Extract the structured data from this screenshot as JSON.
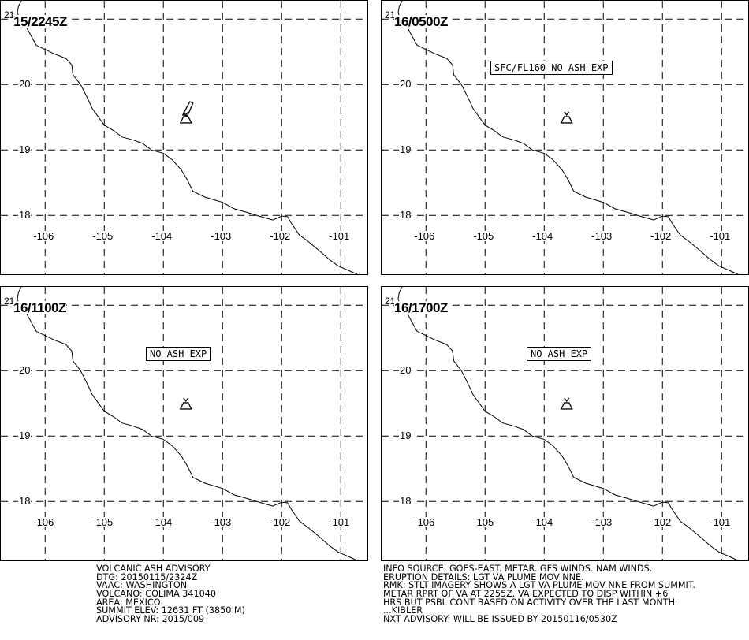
{
  "map": {
    "lat_labels": [
      "20",
      "19",
      "18"
    ],
    "lon_labels": [
      "-106",
      "-105",
      "-104",
      "-103",
      "-102",
      "-101"
    ],
    "corner_label": "21",
    "panels": [
      {
        "time": "15/2245Z",
        "message": "",
        "plume": true
      },
      {
        "time": "16/0500Z",
        "message": "SFC/FL160 NO ASH EXP",
        "plume": false
      },
      {
        "time": "16/1100Z",
        "message": "NO ASH EXP",
        "plume": false
      },
      {
        "time": "16/1700Z",
        "message": "NO ASH EXP",
        "plume": false
      }
    ],
    "volcano": {
      "name": "COLIMA",
      "lon": -103.62,
      "lat": 19.51
    },
    "bounds": {
      "lon_min": -106.75,
      "lon_max": -100.55,
      "lat_min": 17.1,
      "lat_max": 21.28
    },
    "coastline": [
      [
        -106.4,
        21.28
      ],
      [
        -106.45,
        21.2
      ],
      [
        -106.47,
        21.1
      ],
      [
        -106.42,
        20.97
      ],
      [
        -106.35,
        20.93
      ],
      [
        -106.15,
        20.6
      ],
      [
        -105.85,
        20.47
      ],
      [
        -105.65,
        20.4
      ],
      [
        -105.55,
        20.3
      ],
      [
        -105.53,
        20.15
      ],
      [
        -105.4,
        20.0
      ],
      [
        -105.3,
        19.82
      ],
      [
        -105.2,
        19.63
      ],
      [
        -105.0,
        19.38
      ],
      [
        -104.85,
        19.3
      ],
      [
        -104.7,
        19.2
      ],
      [
        -104.5,
        19.15
      ],
      [
        -104.35,
        19.1
      ],
      [
        -104.2,
        19.0
      ],
      [
        -104.0,
        18.95
      ],
      [
        -103.85,
        18.85
      ],
      [
        -103.7,
        18.7
      ],
      [
        -103.6,
        18.55
      ],
      [
        -103.5,
        18.37
      ],
      [
        -103.3,
        18.28
      ],
      [
        -103.0,
        18.2
      ],
      [
        -102.8,
        18.1
      ],
      [
        -102.6,
        18.05
      ],
      [
        -102.35,
        17.98
      ],
      [
        -102.15,
        17.93
      ],
      [
        -102.0,
        17.99
      ],
      [
        -101.9,
        17.98
      ],
      [
        -101.85,
        17.9
      ],
      [
        -101.7,
        17.7
      ],
      [
        -101.55,
        17.6
      ],
      [
        -101.35,
        17.45
      ],
      [
        -101.2,
        17.33
      ],
      [
        -101.05,
        17.23
      ],
      [
        -100.8,
        17.13
      ],
      [
        -100.6,
        17.05
      ]
    ]
  },
  "advisory_left": [
    "VOLCANIC ASH ADVISORY",
    "DTG: 20150115/2324Z",
    "VAAC: WASHINGTON",
    "VOLCANO: COLIMA 341040",
    "AREA: MEXICO",
    "SUMMIT ELEV: 12631 FT (3850 M)",
    "ADVISORY NR: 2015/009"
  ],
  "advisory_right": [
    "INFO SOURCE: GOES-EAST. METAR. GFS WINDS. NAM WINDS.",
    "ERUPTION DETAILS: LGT VA PLUME MOV NNE.",
    "RMK: STLT IMAGERY SHOWS A LGT VA PLUME MOV NNE FROM SUMMIT.",
    "METAR RPRT OF VA AT 2255Z. VA EXPECTED TO DISP WITHIN +6",
    "HRS BUT PSBL CONT BASED ON ACTIVITY OVER THE LAST MONTH.",
    "...KIBLER",
    "NXT ADVISORY: WILL BE ISSUED BY 20150116/0530Z"
  ]
}
